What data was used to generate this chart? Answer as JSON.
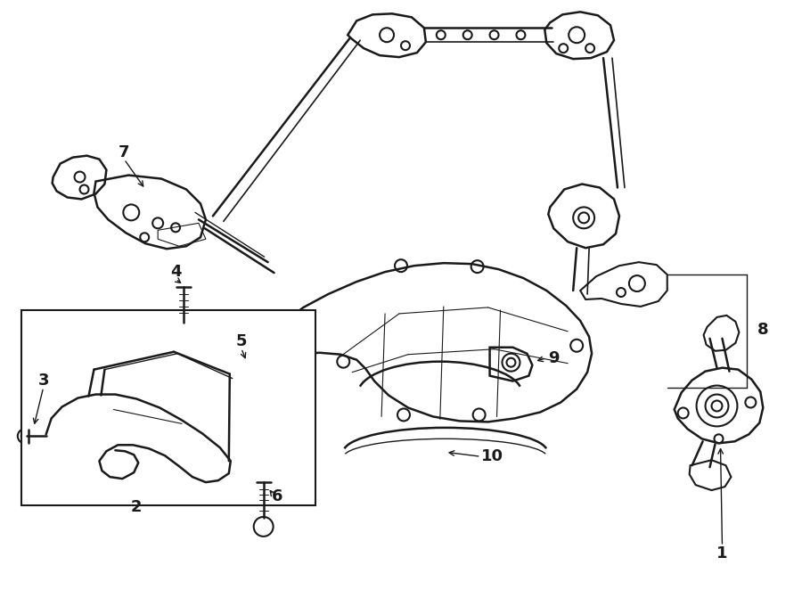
{
  "bg": "#ffffff",
  "lc": "#1a1a1a",
  "lw_main": 1.5,
  "lw_thin": 0.8,
  "figsize": [
    9.0,
    6.62
  ],
  "dpi": 100
}
